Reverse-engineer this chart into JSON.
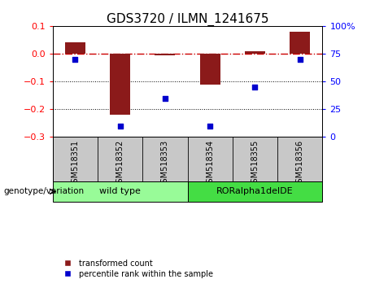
{
  "title": "GDS3720 / ILMN_1241675",
  "samples": [
    "GSM518351",
    "GSM518352",
    "GSM518353",
    "GSM518354",
    "GSM518355",
    "GSM518356"
  ],
  "transformed_count": [
    0.04,
    -0.22,
    -0.005,
    -0.11,
    0.01,
    0.08
  ],
  "percentile_rank": [
    70,
    10,
    35,
    10,
    45,
    70
  ],
  "ylim_left": [
    -0.3,
    0.1
  ],
  "ylim_right": [
    0,
    100
  ],
  "bar_color": "#8B1A1A",
  "point_color": "#0000CD",
  "ref_line_color": "#CC0000",
  "dotted_line_color": "#000000",
  "group_labels": [
    "wild type",
    "RORalpha1delDE"
  ],
  "group_colors": [
    "#98FB98",
    "#44DD44"
  ],
  "sample_label_bg": "#C8C8C8",
  "genotype_label": "genotype/variation",
  "tick_left": [
    -0.3,
    -0.2,
    -0.1,
    0.0,
    0.1
  ],
  "tick_right": [
    0,
    25,
    50,
    75,
    100
  ],
  "tick_right_labels": [
    "0",
    "25",
    "50",
    "75",
    "100%"
  ],
  "legend_labels": [
    "transformed count",
    "percentile rank within the sample"
  ],
  "legend_colors": [
    "#8B1A1A",
    "#0000CD"
  ],
  "title_fontsize": 11,
  "bar_width": 0.45
}
